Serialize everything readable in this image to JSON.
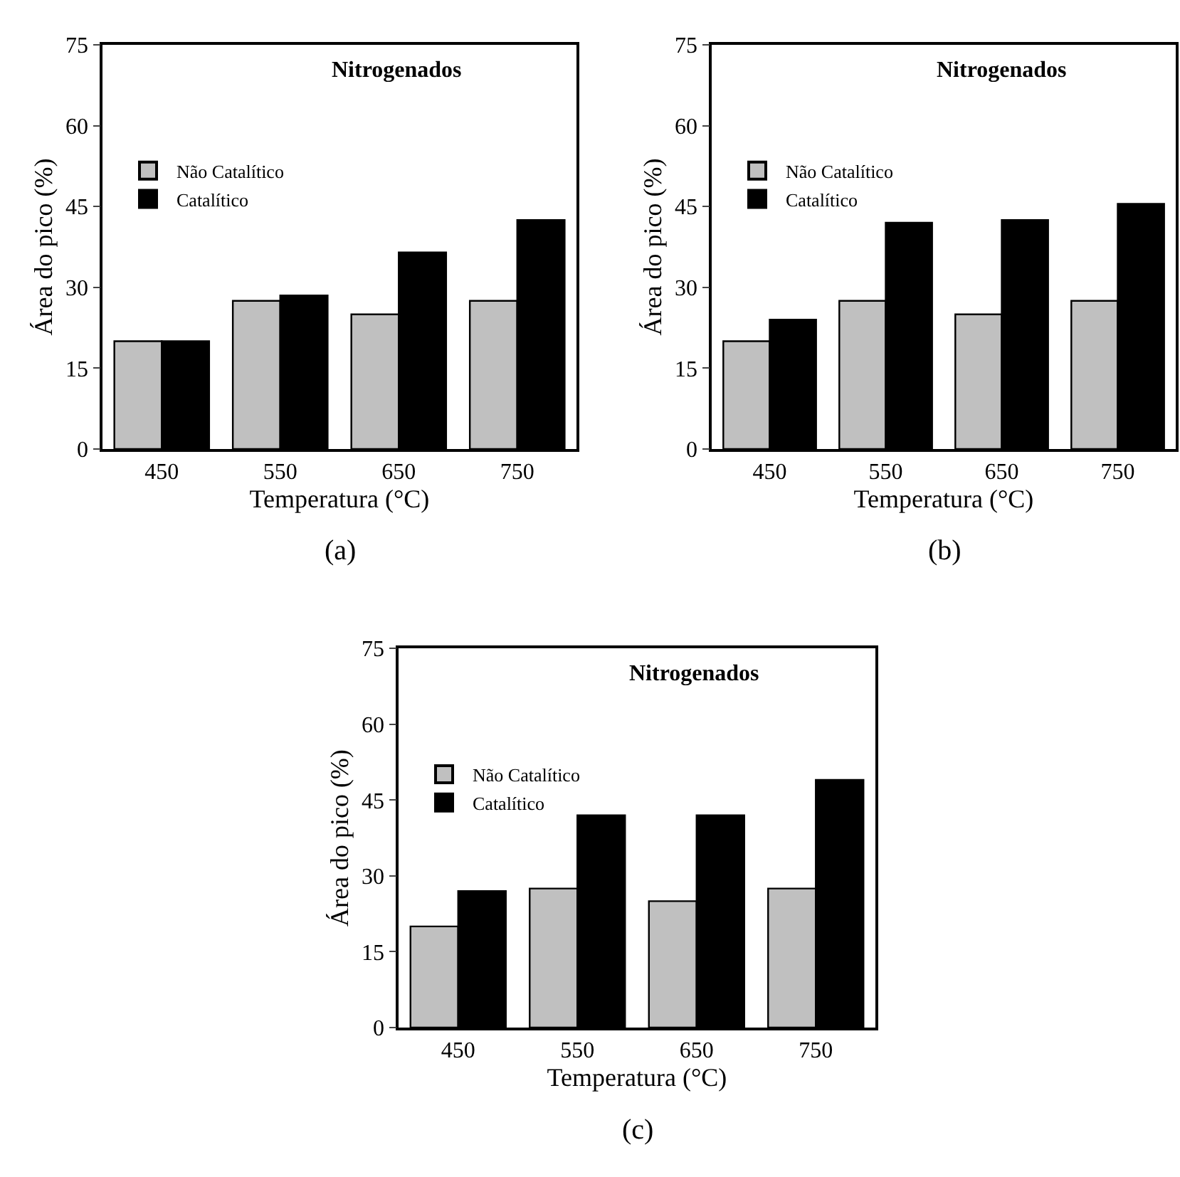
{
  "chart_data": [
    {
      "type": "bar",
      "title": "Nitrogenados",
      "xlabel": "Temperatura (°C)",
      "ylabel": "Área do pico (%)",
      "categories": [
        "450",
        "550",
        "650",
        "750"
      ],
      "series": [
        {
          "name": "Não Catalítico",
          "color": "#c0c0c0",
          "values": [
            20,
            27.5,
            25,
            27.5
          ]
        },
        {
          "name": "Catalítico",
          "color": "#000000",
          "values": [
            20,
            28.5,
            36.5,
            42.5
          ]
        }
      ],
      "ylim": [
        0,
        75
      ],
      "yticks": [
        0,
        15,
        30,
        45,
        60,
        75
      ],
      "legend": "top left",
      "annotations": [
        "(a)"
      ]
    },
    {
      "type": "bar",
      "title": "Nitrogenados",
      "xlabel": "Temperatura (°C)",
      "ylabel": "Área do pico (%)",
      "categories": [
        "450",
        "550",
        "650",
        "750"
      ],
      "series": [
        {
          "name": "Não Catalítico",
          "color": "#c0c0c0",
          "values": [
            20,
            27.5,
            25,
            27.5
          ]
        },
        {
          "name": "Catalítico",
          "color": "#000000",
          "values": [
            24,
            42,
            42.5,
            45.5
          ]
        }
      ],
      "ylim": [
        0,
        75
      ],
      "yticks": [
        0,
        15,
        30,
        45,
        60,
        75
      ],
      "legend": "top left",
      "annotations": [
        "(b)"
      ]
    },
    {
      "type": "bar",
      "title": "Nitrogenados",
      "xlabel": "Temperatura (°C)",
      "ylabel": "Área do pico (%)",
      "categories": [
        "450",
        "550",
        "650",
        "750"
      ],
      "series": [
        {
          "name": "Não Catalítico",
          "color": "#c0c0c0",
          "values": [
            20,
            27.5,
            25,
            27.5
          ]
        },
        {
          "name": "Catalítico",
          "color": "#000000",
          "values": [
            27,
            42,
            42,
            49
          ]
        }
      ],
      "ylim": [
        0,
        75
      ],
      "yticks": [
        0,
        15,
        30,
        45,
        60,
        75
      ],
      "legend": "top left",
      "annotations": [
        "(c)"
      ]
    }
  ]
}
